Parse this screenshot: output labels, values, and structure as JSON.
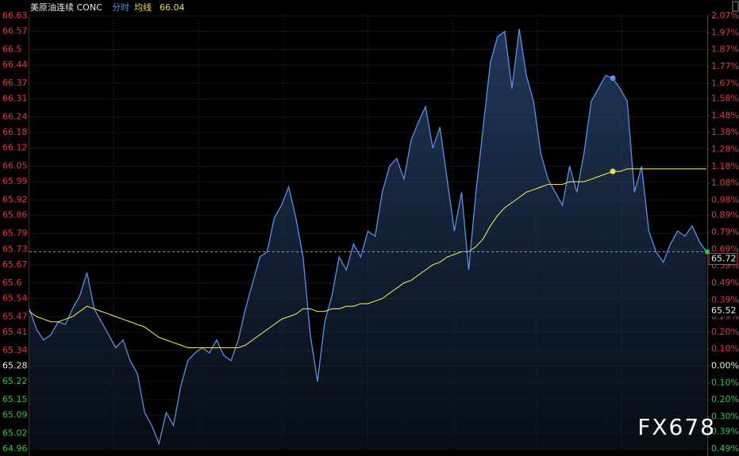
{
  "chart_data": {
    "type": "line",
    "title": "美原油连续 CONC",
    "mode_label": "分时",
    "avg_label": "均线",
    "avg_value": 66.04,
    "current_price": 65.72,
    "annotations": [
      "65.52"
    ],
    "watermark": "FX678",
    "grid": true,
    "series": [
      {
        "name": "price",
        "color": "#5b8fe6",
        "values": [
          65.5,
          65.42,
          65.38,
          65.4,
          65.45,
          65.44,
          65.5,
          65.55,
          65.64,
          65.5,
          65.45,
          65.4,
          65.35,
          65.38,
          65.3,
          65.25,
          65.1,
          65.05,
          64.98,
          65.1,
          65.05,
          65.2,
          65.3,
          65.33,
          65.35,
          65.33,
          65.38,
          65.32,
          65.3,
          65.38,
          65.5,
          65.6,
          65.7,
          65.72,
          65.85,
          65.9,
          65.97,
          65.85,
          65.7,
          65.4,
          65.22,
          65.45,
          65.55,
          65.7,
          65.65,
          65.75,
          65.7,
          65.8,
          65.78,
          65.95,
          66.05,
          66.08,
          66.0,
          66.15,
          66.22,
          66.28,
          66.12,
          66.2,
          66.0,
          65.8,
          65.95,
          65.65,
          65.95,
          66.2,
          66.45,
          66.55,
          66.57,
          66.35,
          66.58,
          66.4,
          66.3,
          66.1,
          66.0,
          65.95,
          65.9,
          66.05,
          65.95,
          66.1,
          66.3,
          66.35,
          66.4,
          66.39,
          66.35,
          66.3,
          65.95,
          66.05,
          65.8,
          65.72,
          65.68,
          65.75,
          65.8,
          65.78,
          65.82,
          65.76,
          65.72
        ]
      },
      {
        "name": "average",
        "color": "#e6e04a",
        "values": [
          65.49,
          65.47,
          65.46,
          65.45,
          65.45,
          65.46,
          65.47,
          65.49,
          65.51,
          65.5,
          65.49,
          65.48,
          65.47,
          65.46,
          65.45,
          65.44,
          65.43,
          65.41,
          65.39,
          65.38,
          65.37,
          65.36,
          65.35,
          65.35,
          65.35,
          65.35,
          65.35,
          65.35,
          65.35,
          65.35,
          65.36,
          65.38,
          65.4,
          65.42,
          65.44,
          65.46,
          65.47,
          65.48,
          65.5,
          65.5,
          65.49,
          65.49,
          65.5,
          65.5,
          65.51,
          65.51,
          65.52,
          65.52,
          65.53,
          65.54,
          65.56,
          65.58,
          65.6,
          65.61,
          65.63,
          65.65,
          65.67,
          65.68,
          65.7,
          65.71,
          65.72,
          65.72,
          65.74,
          65.77,
          65.82,
          65.86,
          65.89,
          65.91,
          65.93,
          65.95,
          65.96,
          65.97,
          65.98,
          65.98,
          65.98,
          65.99,
          65.99,
          65.99,
          66.0,
          66.01,
          66.02,
          66.03,
          66.03,
          66.04,
          66.04,
          66.04,
          66.04,
          66.04,
          66.04,
          66.04,
          66.04,
          66.04,
          66.04,
          66.04,
          66.04
        ]
      }
    ],
    "ylim": [
      64.96,
      66.63
    ],
    "yticks": [
      66.63,
      66.57,
      66.5,
      66.44,
      66.37,
      66.31,
      66.24,
      66.18,
      66.12,
      66.05,
      65.99,
      65.92,
      65.86,
      65.79,
      65.73,
      65.67,
      65.6,
      65.54,
      65.47,
      65.41,
      65.34,
      65.28,
      65.22,
      65.15,
      65.09,
      65.02,
      64.96
    ],
    "y2lim": [
      -0.49,
      2.07
    ],
    "y2ticks": [
      {
        "value": 2.07,
        "label": "2.07%"
      },
      {
        "value": 1.97,
        "label": "1.97%"
      },
      {
        "value": 1.87,
        "label": "1.87%"
      },
      {
        "value": 1.77,
        "label": "1.77%"
      },
      {
        "value": 1.67,
        "label": "1.67%"
      },
      {
        "value": 1.58,
        "label": "1.58%"
      },
      {
        "value": 1.48,
        "label": "1.48%"
      },
      {
        "value": 1.38,
        "label": "1.38%"
      },
      {
        "value": 1.28,
        "label": "1.28%"
      },
      {
        "value": 1.18,
        "label": "1.18%"
      },
      {
        "value": 1.08,
        "label": "1.08%"
      },
      {
        "value": 0.98,
        "label": "0.98%"
      },
      {
        "value": 0.89,
        "label": "0.89%"
      },
      {
        "value": 0.79,
        "label": "0.79%"
      },
      {
        "value": 0.69,
        "label": "0.69%"
      },
      {
        "value": 0.59,
        "label": "0.59%"
      },
      {
        "value": 0.49,
        "label": "0.49%"
      },
      {
        "value": 0.39,
        "label": "0.39%"
      },
      {
        "value": 0.29,
        "label": "0.29%"
      },
      {
        "value": 0.2,
        "label": "0.20%"
      },
      {
        "value": 0.1,
        "label": "0.10%"
      },
      {
        "value": 0,
        "label": "0.00%"
      },
      {
        "value": -0.1,
        "label": "0.10%"
      },
      {
        "value": -0.2,
        "label": "0.20%"
      },
      {
        "value": -0.3,
        "label": "0.30%"
      },
      {
        "value": -0.39,
        "label": "0.39%"
      },
      {
        "value": -0.49,
        "label": "0.49%"
      }
    ]
  }
}
